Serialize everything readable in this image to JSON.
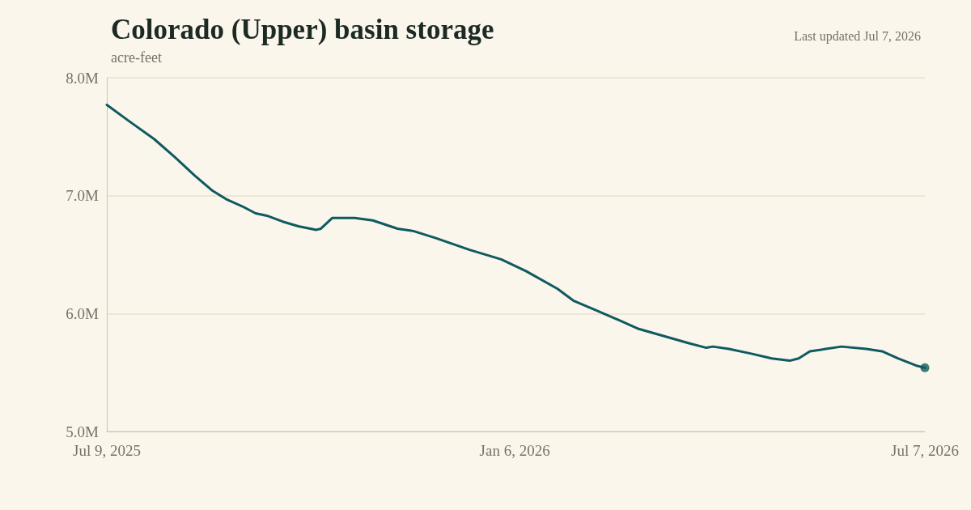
{
  "chart_data": {
    "type": "line",
    "title": "Colorado (Upper) basin storage",
    "subtitle": "acre-feet",
    "annotations": [
      "Last updated Jul 7, 2026"
    ],
    "xlim": [
      "2025-07-09",
      "2026-07-07"
    ],
    "xticks": [
      {
        "value": "2025-07-09",
        "label": "Jul 9, 2025"
      },
      {
        "value": "2026-01-06",
        "label": "Jan 6, 2026"
      },
      {
        "value": "2026-07-07",
        "label": "Jul 7, 2026"
      }
    ],
    "ylim": [
      5000000,
      8000000
    ],
    "yticks": [
      {
        "value": 5000000,
        "label": "5.0M"
      },
      {
        "value": 6000000,
        "label": "6.0M"
      },
      {
        "value": 7000000,
        "label": "7.0M"
      },
      {
        "value": 8000000,
        "label": "8.0M"
      }
    ],
    "grid": "y",
    "marker": "none",
    "line_style": "solid",
    "series": [
      {
        "color": "#0f5a60",
        "x": [
          "2025-07-09",
          "2025-07-19",
          "2025-07-30",
          "2025-08-08",
          "2025-08-17",
          "2025-08-25",
          "2025-08-31",
          "2025-09-07",
          "2025-09-13",
          "2025-09-18",
          "2025-09-25",
          "2025-10-02",
          "2025-10-10",
          "2025-10-12",
          "2025-10-17",
          "2025-10-22",
          "2025-10-27",
          "2025-11-04",
          "2025-11-15",
          "2025-11-22",
          "2025-12-02",
          "2025-12-17",
          "2025-12-31",
          "2026-01-11",
          "2026-01-25",
          "2026-02-01",
          "2026-02-12",
          "2026-02-23",
          "2026-03-02",
          "2026-03-13",
          "2026-03-24",
          "2026-04-01",
          "2026-04-04",
          "2026-04-11",
          "2026-04-21",
          "2026-04-30",
          "2026-05-08",
          "2026-05-12",
          "2026-05-17",
          "2026-05-24",
          "2026-05-31",
          "2026-06-11",
          "2026-06-18",
          "2026-06-25",
          "2026-07-03",
          "2026-07-07"
        ],
        "values": [
          7770000,
          7630000,
          7480000,
          7330000,
          7170000,
          7040000,
          6970000,
          6910000,
          6850000,
          6830000,
          6780000,
          6740000,
          6710000,
          6720000,
          6810000,
          6810000,
          6810000,
          6790000,
          6720000,
          6700000,
          6640000,
          6540000,
          6460000,
          6360000,
          6210000,
          6110000,
          6020000,
          5930000,
          5870000,
          5810000,
          5750000,
          5710000,
          5720000,
          5700000,
          5660000,
          5620000,
          5600000,
          5620000,
          5680000,
          5700000,
          5720000,
          5700000,
          5680000,
          5620000,
          5560000,
          5540000
        ]
      },
      {
        "type": "scatter",
        "color": "#0f5a60",
        "marker": "circle",
        "x": [
          "2026-07-07"
        ],
        "values": [
          5540000
        ]
      }
    ]
  }
}
